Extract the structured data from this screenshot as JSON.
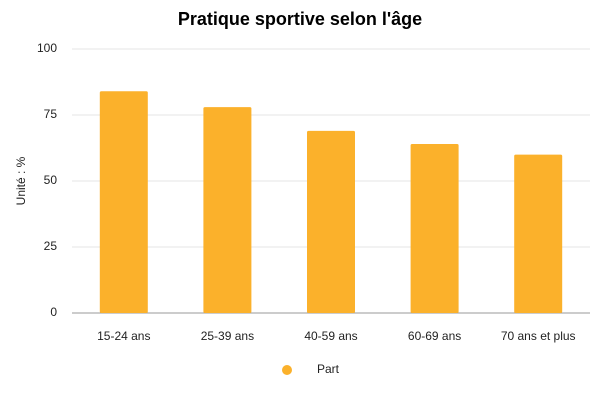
{
  "chart_data": {
    "type": "bar",
    "title": "Pratique sportive selon l'âge",
    "y_label": "Unité : %",
    "categories": [
      "15-24 ans",
      "25-39 ans",
      "40-59 ans",
      "60-69 ans",
      "70 ans et plus"
    ],
    "series": [
      {
        "name": "Part",
        "color": "#fbb12b",
        "values": [
          84,
          78,
          69,
          64,
          60
        ]
      }
    ],
    "ylim": [
      0,
      100
    ],
    "yticks": [
      0,
      25,
      50,
      75,
      100
    ],
    "grid": true,
    "legend": "bottom"
  }
}
